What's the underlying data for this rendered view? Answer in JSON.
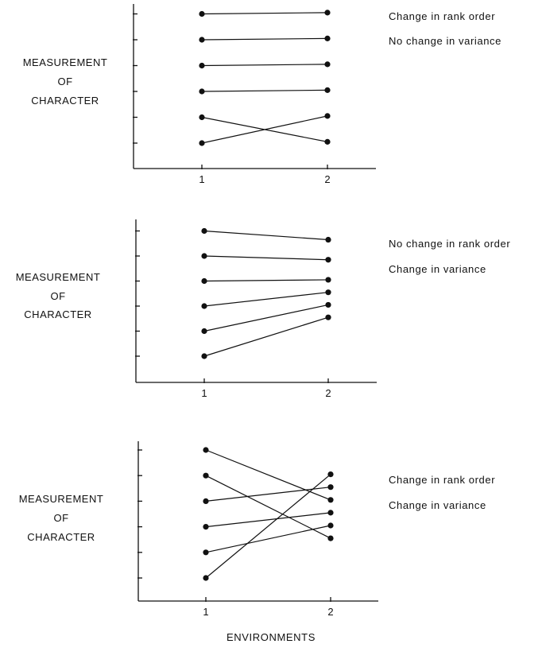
{
  "xlabel": "ENVIRONMENTS",
  "chart_data": [
    {
      "type": "line",
      "ylabel": [
        "MEASUREMENT",
        "OF",
        "CHARACTER"
      ],
      "categories": [
        "1",
        "2"
      ],
      "ylim": [
        0.5,
        6.5
      ],
      "annotations": [
        "Change in rank order",
        "No change in variance"
      ],
      "series": [
        {
          "values": [
            6,
            6.05
          ]
        },
        {
          "values": [
            5,
            5.05
          ]
        },
        {
          "values": [
            4,
            4.05
          ]
        },
        {
          "values": [
            3,
            3.05
          ]
        },
        {
          "values": [
            2,
            1.05
          ]
        },
        {
          "values": [
            1,
            2.05
          ]
        }
      ]
    },
    {
      "type": "line",
      "ylabel": [
        "MEASUREMENT",
        "OF",
        "CHARACTER"
      ],
      "categories": [
        "1",
        "2"
      ],
      "ylim": [
        0.5,
        6.5
      ],
      "annotations": [
        "No change in rank order",
        "Change in variance"
      ],
      "series": [
        {
          "values": [
            6,
            5.65
          ]
        },
        {
          "values": [
            5,
            4.85
          ]
        },
        {
          "values": [
            4,
            4.05
          ]
        },
        {
          "values": [
            3,
            3.55
          ]
        },
        {
          "values": [
            2,
            3.05
          ]
        },
        {
          "values": [
            1,
            2.55
          ]
        }
      ]
    },
    {
      "type": "line",
      "ylabel": [
        "MEASUREMENT",
        "OF",
        "CHARACTER"
      ],
      "categories": [
        "1",
        "2"
      ],
      "ylim": [
        0.5,
        6.5
      ],
      "annotations": [
        "Change in rank order",
        "Change in variance"
      ],
      "series": [
        {
          "values": [
            6,
            4.05
          ]
        },
        {
          "values": [
            5,
            2.55
          ]
        },
        {
          "values": [
            4,
            4.55
          ]
        },
        {
          "values": [
            3,
            3.55
          ]
        },
        {
          "values": [
            2,
            3.05
          ]
        },
        {
          "values": [
            1,
            5.05
          ]
        }
      ]
    }
  ]
}
